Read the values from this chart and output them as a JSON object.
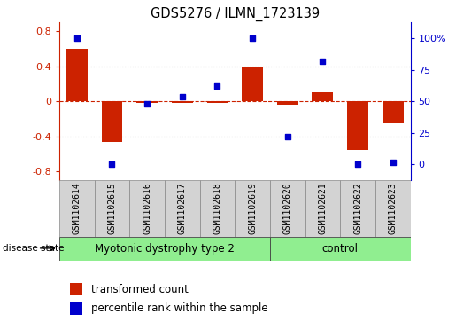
{
  "title": "GDS5276 / ILMN_1723139",
  "samples": [
    "GSM1102614",
    "GSM1102615",
    "GSM1102616",
    "GSM1102617",
    "GSM1102618",
    "GSM1102619",
    "GSM1102620",
    "GSM1102621",
    "GSM1102622",
    "GSM1102623"
  ],
  "bar_values": [
    0.6,
    -0.46,
    -0.02,
    -0.02,
    -0.02,
    0.4,
    -0.04,
    0.1,
    -0.55,
    -0.25
  ],
  "dot_values": [
    100,
    0,
    48,
    54,
    62,
    100,
    22,
    82,
    0,
    2
  ],
  "groups": [
    {
      "label": "Myotonic dystrophy type 2",
      "start": 0,
      "end": 6,
      "color": "#90EE90"
    },
    {
      "label": "control",
      "start": 6,
      "end": 10,
      "color": "#90EE90"
    }
  ],
  "bar_color": "#CC2200",
  "dot_color": "#0000CC",
  "ylim_left": [
    -0.9,
    0.9
  ],
  "ylim_right": [
    -12.5,
    112.5
  ],
  "yticks_left": [
    -0.8,
    -0.4,
    0.0,
    0.4,
    0.8
  ],
  "yticks_right": [
    0,
    25,
    50,
    75,
    100
  ],
  "hlines": [
    0.4,
    -0.4
  ],
  "disease_state_label": "disease state",
  "legend_bar_label": "transformed count",
  "legend_dot_label": "percentile rank within the sample",
  "bar_width": 0.6,
  "dot_size": 22,
  "label_fontsize": 7.0,
  "group_label_fontsize": 8.5
}
